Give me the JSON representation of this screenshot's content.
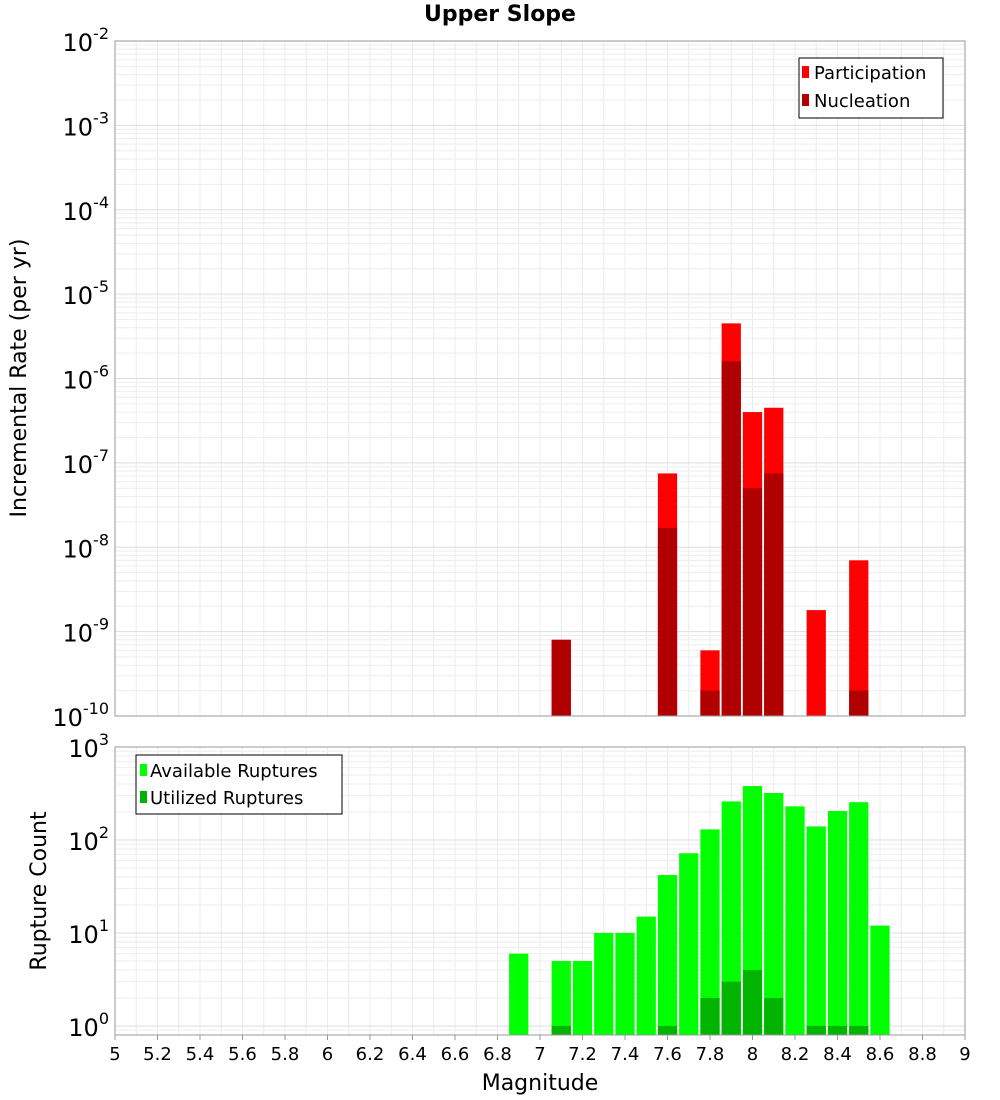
{
  "chart_data": [
    {
      "type": "bar",
      "title": "Upper Slope",
      "ylabel": "Incremental Rate (per yr)",
      "xlabel": "",
      "yscale": "log",
      "ylim": [
        1e-10,
        0.01
      ],
      "xlim": [
        5,
        9
      ],
      "bin_width": 0.1,
      "x": [
        7.1,
        7.6,
        7.8,
        7.9,
        8.0,
        8.1,
        8.3,
        8.5
      ],
      "series": [
        {
          "name": "Participation",
          "color": "#ff0000",
          "values": [
            8e-10,
            7.5e-08,
            6e-10,
            4.5e-06,
            4e-07,
            4.5e-07,
            1.8e-09,
            7e-09
          ]
        },
        {
          "name": "Nucleation",
          "color": "#b00000",
          "values": [
            8e-10,
            1.7e-08,
            2e-10,
            1.6e-06,
            5e-08,
            7.5e-08,
            null,
            2e-10
          ]
        }
      ],
      "legend_position": "top-right",
      "grid": true,
      "ytick_exponents": [
        "-10",
        "-9",
        "-8",
        "-7",
        "-6",
        "-5",
        "-4",
        "-3",
        "-2"
      ]
    },
    {
      "type": "bar",
      "title": "",
      "ylabel": "Rupture Count",
      "xlabel": "Magnitude",
      "yscale": "log",
      "ylim": [
        0.8,
        1000
      ],
      "xlim": [
        5,
        9
      ],
      "bin_width": 0.1,
      "x": [
        6.9,
        7.1,
        7.2,
        7.3,
        7.4,
        7.5,
        7.6,
        7.7,
        7.8,
        7.9,
        8.0,
        8.1,
        8.2,
        8.3,
        8.4,
        8.5,
        8.6
      ],
      "series": [
        {
          "name": "Available Ruptures",
          "color": "#00ff00",
          "values": [
            6,
            5,
            5,
            10,
            10,
            15,
            42,
            72,
            130,
            260,
            380,
            320,
            230,
            140,
            205,
            255,
            12
          ]
        },
        {
          "name": "Utilized Ruptures",
          "color": "#00b400",
          "values": [
            null,
            1,
            null,
            null,
            null,
            null,
            1,
            null,
            2,
            3,
            4,
            2,
            null,
            1,
            1,
            1,
            null
          ]
        }
      ],
      "legend_position": "top-left",
      "grid": true,
      "ytick_exponents": [
        "0",
        "1",
        "2",
        "3"
      ],
      "xticks": [
        "5",
        "5.2",
        "5.4",
        "5.6",
        "5.8",
        "6",
        "6.2",
        "6.4",
        "6.6",
        "6.8",
        "7",
        "7.2",
        "7.4",
        "7.6",
        "7.8",
        "8",
        "8.2",
        "8.4",
        "8.6",
        "8.8",
        "9"
      ]
    }
  ]
}
